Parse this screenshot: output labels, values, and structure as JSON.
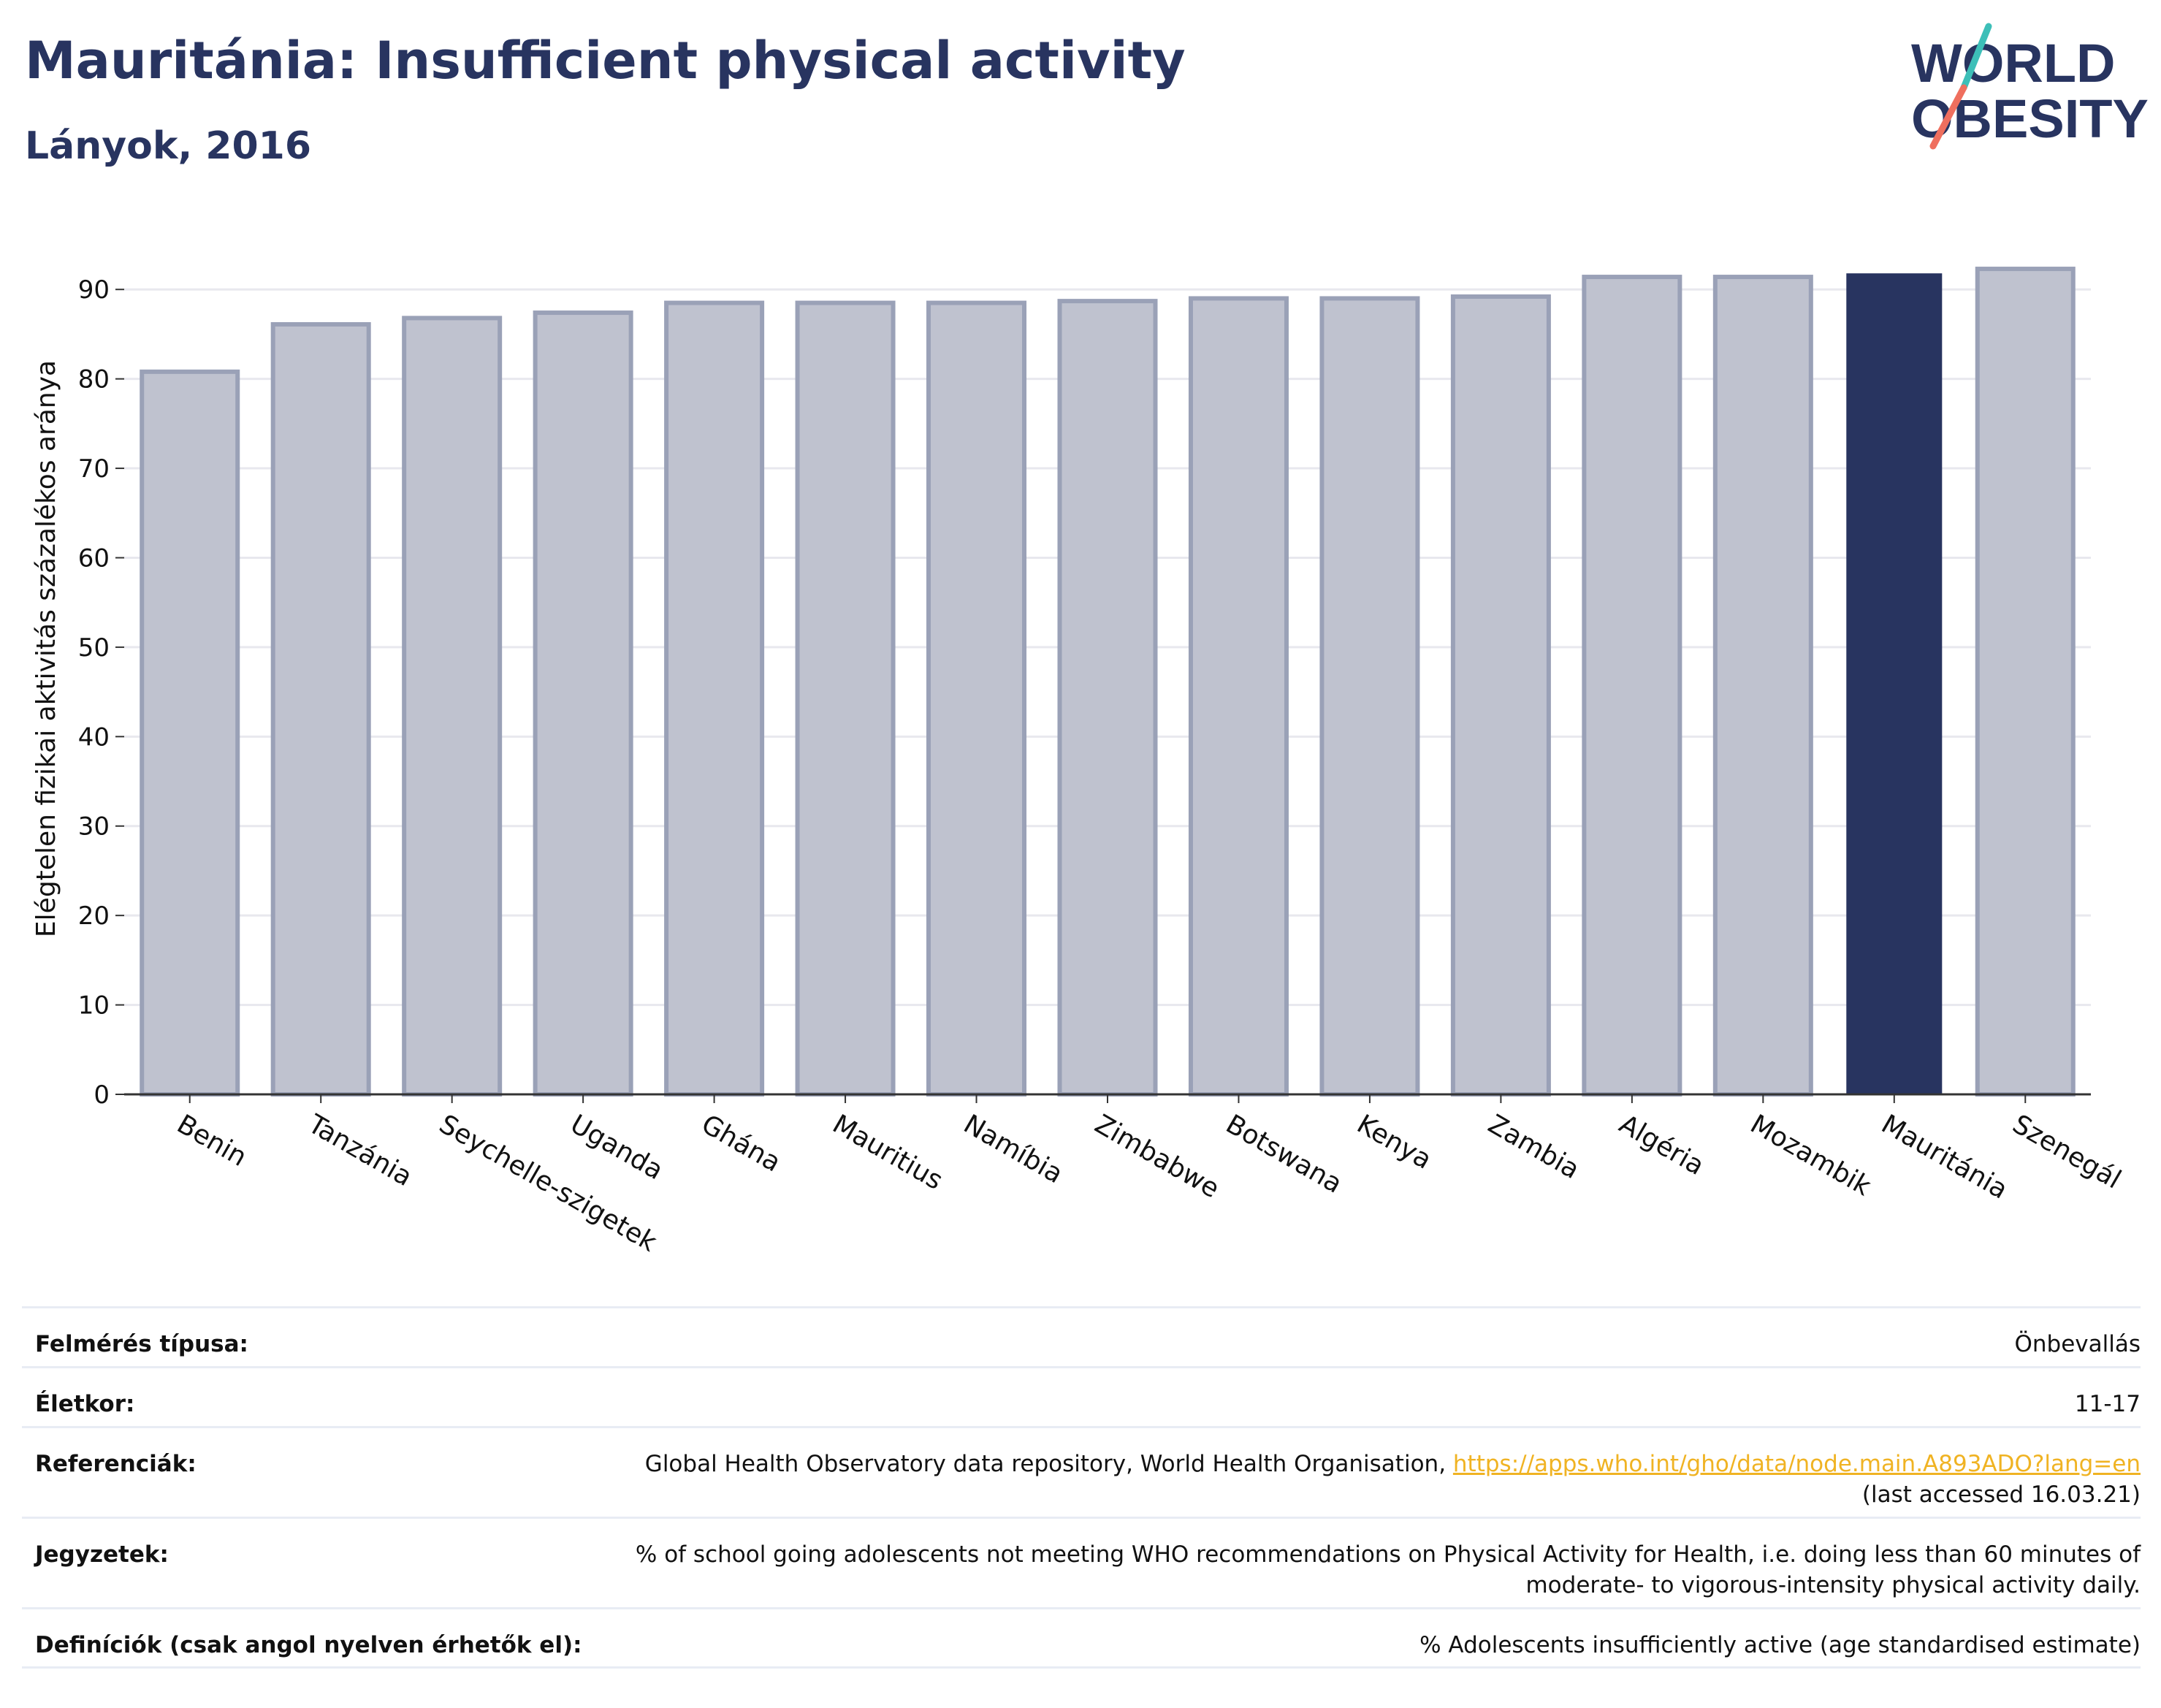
{
  "title": "Mauritánia: Insufficient physical activity",
  "subtitle": "Lányok, 2016",
  "logo": {
    "line1": "WORLD",
    "line2": "OBESITY"
  },
  "colors": {
    "highlight": "#283460",
    "bar_fill": "#bfc2cf",
    "bar_edge": "#9aa1b7",
    "title": "#283460",
    "link": "#f0b323"
  },
  "chart_data": {
    "type": "bar",
    "categories": [
      "Benin",
      "Tanzánia",
      "Seychelle-szigetek",
      "Uganda",
      "Ghána",
      "Mauritius",
      "Namíbia",
      "Zimbabwe",
      "Botswana",
      "Kenya",
      "Zambia",
      "Algéria",
      "Mozambik",
      "Mauritánia",
      "Szenegál"
    ],
    "values": [
      80.8,
      86.1,
      86.8,
      87.4,
      88.5,
      88.5,
      88.5,
      88.7,
      89.0,
      89.0,
      89.2,
      91.4,
      91.4,
      91.8,
      92.3
    ],
    "highlight": "Mauritánia",
    "ylabel": "Elégtelen fizikai aktivitás százalékos aránya",
    "ylim": [
      0,
      95
    ],
    "yticks": [
      0,
      10,
      20,
      30,
      40,
      50,
      60,
      70,
      80,
      90
    ],
    "grid": true
  },
  "info": [
    {
      "label": "Felmérés típusa:",
      "value": "Önbevallás"
    },
    {
      "label": "Életkor:",
      "value": "11-17"
    },
    {
      "label": "Referenciák:",
      "value": "Global Health Observatory data repository, World Health Organisation, ",
      "link": "https://apps.who.int/gho/data/node.main.A893ADO?lang=en",
      "value2": "(last accessed 16.03.21)"
    },
    {
      "label": "Jegyzetek:",
      "value": "% of school going adolescents not meeting WHO recommendations on Physical Activity for Health, i.e. doing less than 60 minutes of moderate- to vigorous-intensity physical activity daily."
    },
    {
      "label": "Definíciók (csak angol nyelven érhetők el):",
      "value": "% Adolescents insufficiently active (age standardised estimate)"
    }
  ]
}
